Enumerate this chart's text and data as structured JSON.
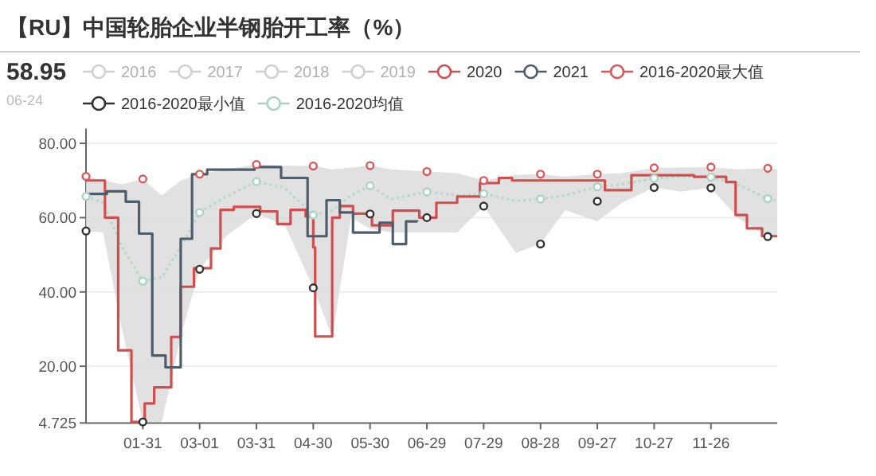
{
  "chart_data": {
    "type": "step",
    "title": "【RU】中国轮胎企业半钢胎开工率（%）",
    "annotations": [
      "58.95",
      "06-24"
    ],
    "xlim": [
      "--01-01",
      "--12-31"
    ],
    "xticks": [
      {
        "value": "--01-31",
        "label": "01-31"
      },
      {
        "value": "--03-01",
        "label": "03-01"
      },
      {
        "value": "--03-31",
        "label": "03-31"
      },
      {
        "value": "--04-30",
        "label": "04-30"
      },
      {
        "value": "--05-30",
        "label": "05-30"
      },
      {
        "value": "--06-29",
        "label": "06-29"
      },
      {
        "value": "--07-29",
        "label": "07-29"
      },
      {
        "value": "--08-28",
        "label": "08-28"
      },
      {
        "value": "--09-27",
        "label": "09-27"
      },
      {
        "value": "--10-27",
        "label": "10-27"
      },
      {
        "value": "--11-26",
        "label": "11-26"
      }
    ],
    "ylim": [
      4.725,
      84
    ],
    "yticks": [
      4.725,
      {
        "value": 20,
        "label": "20.00"
      },
      {
        "value": 40,
        "label": "40.00"
      },
      {
        "value": 60,
        "label": "60.00"
      },
      {
        "value": 80,
        "label": "80.00"
      }
    ],
    "grid": "y",
    "legend": "top",
    "series": [
      {
        "name": "2016",
        "type": "line",
        "color": "#d0d0d0"
      },
      {
        "name": "2017",
        "type": "line",
        "color": "#d0d0d0"
      },
      {
        "name": "2018",
        "type": "line",
        "color": "#d0d0d0"
      },
      {
        "name": "2019",
        "type": "line",
        "color": "#d0d0d0"
      },
      {
        "type": "line",
        "line_style": "dotted",
        "color": "#b5d8c9",
        "x": [
          "--01-01",
          "--01-10",
          "--01-20",
          "--01-31",
          "--02-10",
          "--02-20",
          "--03-01",
          "--03-15",
          "--03-31",
          "--04-15",
          "--04-30",
          "--05-10",
          "--05-20",
          "--05-30",
          "--06-10",
          "--06-29",
          "--07-15",
          "--07-29",
          "--08-15",
          "--08-28",
          "--09-10",
          "--09-27",
          "--10-10",
          "--10-27",
          "--11-10",
          "--11-26",
          "--12-10",
          "--12-26",
          "--12-31"
        ],
        "values": [
          65.7,
          64,
          52,
          42.9,
          44,
          52,
          61.4,
          65.7,
          69.7,
          68,
          60.7,
          62,
          66,
          68.6,
          65,
          66.9,
          66,
          66.4,
          64.5,
          65,
          66,
          68.3,
          69,
          70.6,
          71,
          70.9,
          69,
          65.1,
          64.5
        ],
        "lower": [
          56.4,
          56,
          30,
          5,
          5,
          28,
          46.1,
          55,
          61.1,
          58,
          41.1,
          28,
          60,
          57,
          56,
          56,
          56,
          63.1,
          50.5,
          52.9,
          62,
          59,
          64,
          68.1,
          67,
          68,
          60,
          54.9,
          55
        ],
        "upper": [
          71.1,
          70,
          69,
          70.4,
          66,
          70,
          71.7,
          73,
          74.3,
          74,
          73.9,
          73,
          73.5,
          74,
          73,
          72.4,
          72,
          70,
          71.5,
          71.7,
          71,
          71.7,
          72,
          73.4,
          73.5,
          73.6,
          73,
          73.3,
          73
        ]
      },
      {
        "name": "2020",
        "color": "#cf4f4f",
        "x": [
          "--01-01",
          "--01-11",
          "--01-18",
          "--01-25",
          "--02-01",
          "--02-06",
          "--02-15",
          "--02-20",
          "--02-27",
          "--03-07",
          "--03-12",
          "--03-19",
          "--04-02",
          "--04-11",
          "--04-18",
          "--04-26",
          "--04-30",
          "--05-01",
          "--05-10",
          "--05-14",
          "--05-21",
          "--05-31",
          "--06-11",
          "--06-25",
          "--07-04",
          "--07-15",
          "--07-27",
          "--08-06",
          "--08-13",
          "--10-01",
          "--10-15",
          "--11-17",
          "--12-04",
          "--12-09",
          "--12-15",
          "--12-23",
          "--12-31"
        ],
        "values": [
          70,
          60,
          24.3,
          5,
          10,
          14.3,
          27.9,
          41.4,
          46.4,
          51.7,
          62.1,
          62.9,
          61.7,
          58.3,
          62.1,
          60.3,
          52,
          28,
          60,
          63.1,
          61.1,
          57.9,
          61.9,
          60,
          64,
          65.7,
          69.3,
          70.7,
          70,
          67.4,
          71.4,
          71,
          69.6,
          60.7,
          57.1,
          55,
          55
        ]
      },
      {
        "name": "2021",
        "color": "#4e5d6c",
        "x": [
          "--01-01",
          "--01-12",
          "--01-22",
          "--01-29",
          "--02-05",
          "--02-12",
          "--02-20",
          "--02-26",
          "--03-05",
          "--03-30",
          "--04-13",
          "--04-27",
          "--05-07",
          "--05-14",
          "--05-21",
          "--06-04",
          "--06-11",
          "--06-18",
          "--06-24"
        ],
        "values": [
          66.4,
          67.1,
          64.3,
          55.7,
          22.9,
          19.7,
          54.3,
          71.7,
          72.9,
          73.6,
          70.7,
          55,
          64.7,
          61.4,
          56,
          58.6,
          52.9,
          59,
          58.95
        ]
      },
      {
        "name": "2016-2020最大值",
        "type": "scatter",
        "color": "#d9595a",
        "marker": "circle",
        "x": [
          "--01-01",
          "--01-31",
          "--03-01",
          "--03-31",
          "--04-30",
          "--05-30",
          "--06-29",
          "--07-29",
          "--08-28",
          "--09-27",
          "--10-27",
          "--11-26",
          "--12-26"
        ],
        "values": [
          71.1,
          70.4,
          71.7,
          74.3,
          73.9,
          74,
          72.4,
          70,
          71.7,
          71.7,
          73.4,
          73.6,
          73.3
        ]
      },
      {
        "name": "2016-2020最小值",
        "type": "scatter",
        "color": "#333333",
        "marker": "circle",
        "x": [
          "--01-01",
          "--01-31",
          "--03-01",
          "--03-31",
          "--04-30",
          "--05-30",
          "--06-29",
          "--07-29",
          "--08-28",
          "--09-27",
          "--10-27",
          "--11-26",
          "--12-26"
        ],
        "values": [
          56.4,
          5,
          46.1,
          61.1,
          41.1,
          61,
          60,
          63.1,
          52.9,
          64.4,
          68.1,
          68,
          54.9
        ]
      },
      {
        "name": "2016-2020均值",
        "type": "scatter",
        "color": "#a9d3c3",
        "marker": "circle",
        "x": [
          "--01-01",
          "--01-31",
          "--03-01",
          "--03-31",
          "--04-30",
          "--05-30",
          "--06-29",
          "--07-29",
          "--08-28",
          "--09-27",
          "--10-27",
          "--11-26",
          "--12-26"
        ],
        "values": [
          65.7,
          42.9,
          61.4,
          69.7,
          60.7,
          68.6,
          66.9,
          66.4,
          65,
          68.3,
          70.6,
          70.9,
          65.1
        ]
      }
    ]
  }
}
